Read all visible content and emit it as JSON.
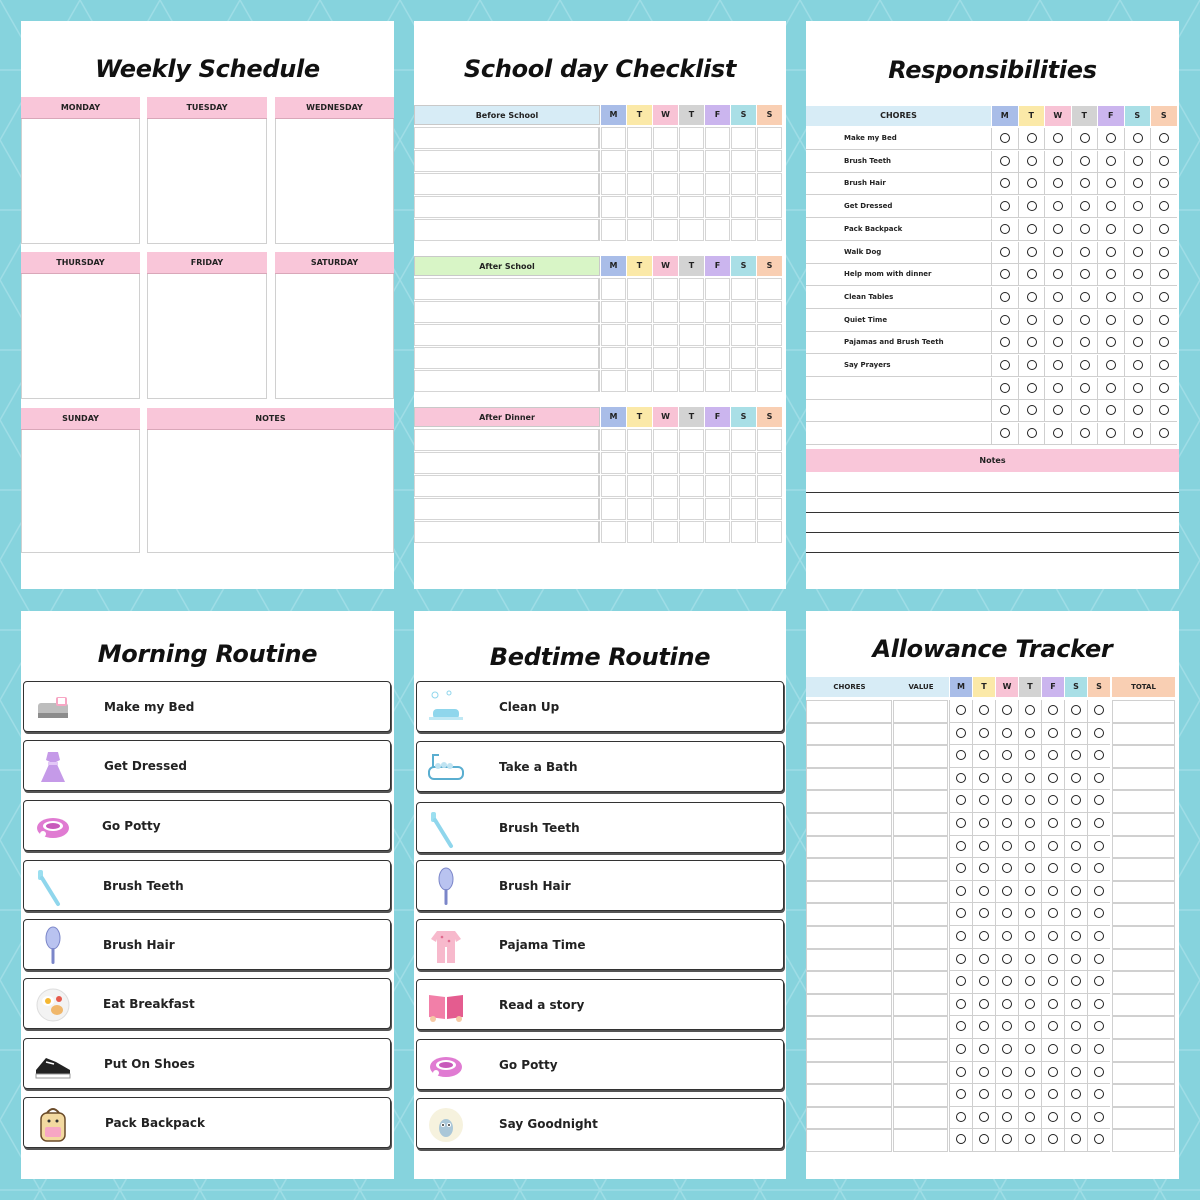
{
  "colors": {
    "background": "#86d3dd",
    "pink": "#f9c6d9",
    "blue": "#d7ecf6",
    "green": "#d8f5c6",
    "day_colors": [
      "#a9bde8",
      "#fbe9a8",
      "#f8c3d5",
      "#d3d3d3",
      "#cbb5ee",
      "#a9dfe6",
      "#f9cfb3"
    ]
  },
  "weekly": {
    "title": "Weekly Schedule",
    "days": [
      "MONDAY",
      "TUESDAY",
      "WEDNESDAY",
      "THURSDAY",
      "FRIDAY",
      "SATURDAY",
      "SUNDAY",
      "NOTES"
    ]
  },
  "school": {
    "title": "School day Checklist",
    "sections": [
      "Before School",
      "After School",
      "After Dinner"
    ],
    "day_letters": [
      "M",
      "T",
      "W",
      "T",
      "F",
      "S",
      "S"
    ]
  },
  "resp": {
    "title": "Responsibilities",
    "chores_header": "CHORES",
    "chores": [
      "Make my Bed",
      "Brush Teeth",
      "Brush Hair",
      "Get Dressed",
      "Pack Backpack",
      "Walk Dog",
      "Help mom with dinner",
      "Clean Tables",
      "Quiet Time",
      "Pajamas and Brush Teeth",
      "Say Prayers",
      "",
      "",
      ""
    ],
    "notes": "Notes"
  },
  "morning": {
    "title": "Morning Routine",
    "items": [
      {
        "label": "Make my Bed",
        "icon": "bed-icon"
      },
      {
        "label": "Get Dressed",
        "icon": "dress-icon"
      },
      {
        "label": "Go Potty",
        "icon": "potty-icon"
      },
      {
        "label": "Brush Teeth",
        "icon": "toothbrush-icon"
      },
      {
        "label": "Brush Hair",
        "icon": "hairbrush-icon"
      },
      {
        "label": "Eat Breakfast",
        "icon": "breakfast-icon"
      },
      {
        "label": "Put On Shoes",
        "icon": "shoe-icon"
      },
      {
        "label": "Pack Backpack",
        "icon": "backpack-icon"
      }
    ]
  },
  "bedtime": {
    "title": "Bedtime Routine",
    "items": [
      {
        "label": "Clean Up",
        "icon": "cleaning-icon"
      },
      {
        "label": "Take a Bath",
        "icon": "bathtub-icon"
      },
      {
        "label": "Brush Teeth",
        "icon": "toothbrush-icon"
      },
      {
        "label": "Brush Hair",
        "icon": "hairbrush-icon"
      },
      {
        "label": "Pajama Time",
        "icon": "pajama-icon"
      },
      {
        "label": "Read a story",
        "icon": "book-icon"
      },
      {
        "label": "Go Potty",
        "icon": "potty-icon"
      },
      {
        "label": "Say Goodnight",
        "icon": "moon-owl-icon"
      }
    ]
  },
  "allowance": {
    "title": "Allowance Tracker",
    "headers": {
      "chores": "CHORES",
      "value": "VALUE",
      "total": "TOTAL"
    },
    "day_letters": [
      "M",
      "T",
      "W",
      "T",
      "F",
      "S",
      "S"
    ]
  }
}
